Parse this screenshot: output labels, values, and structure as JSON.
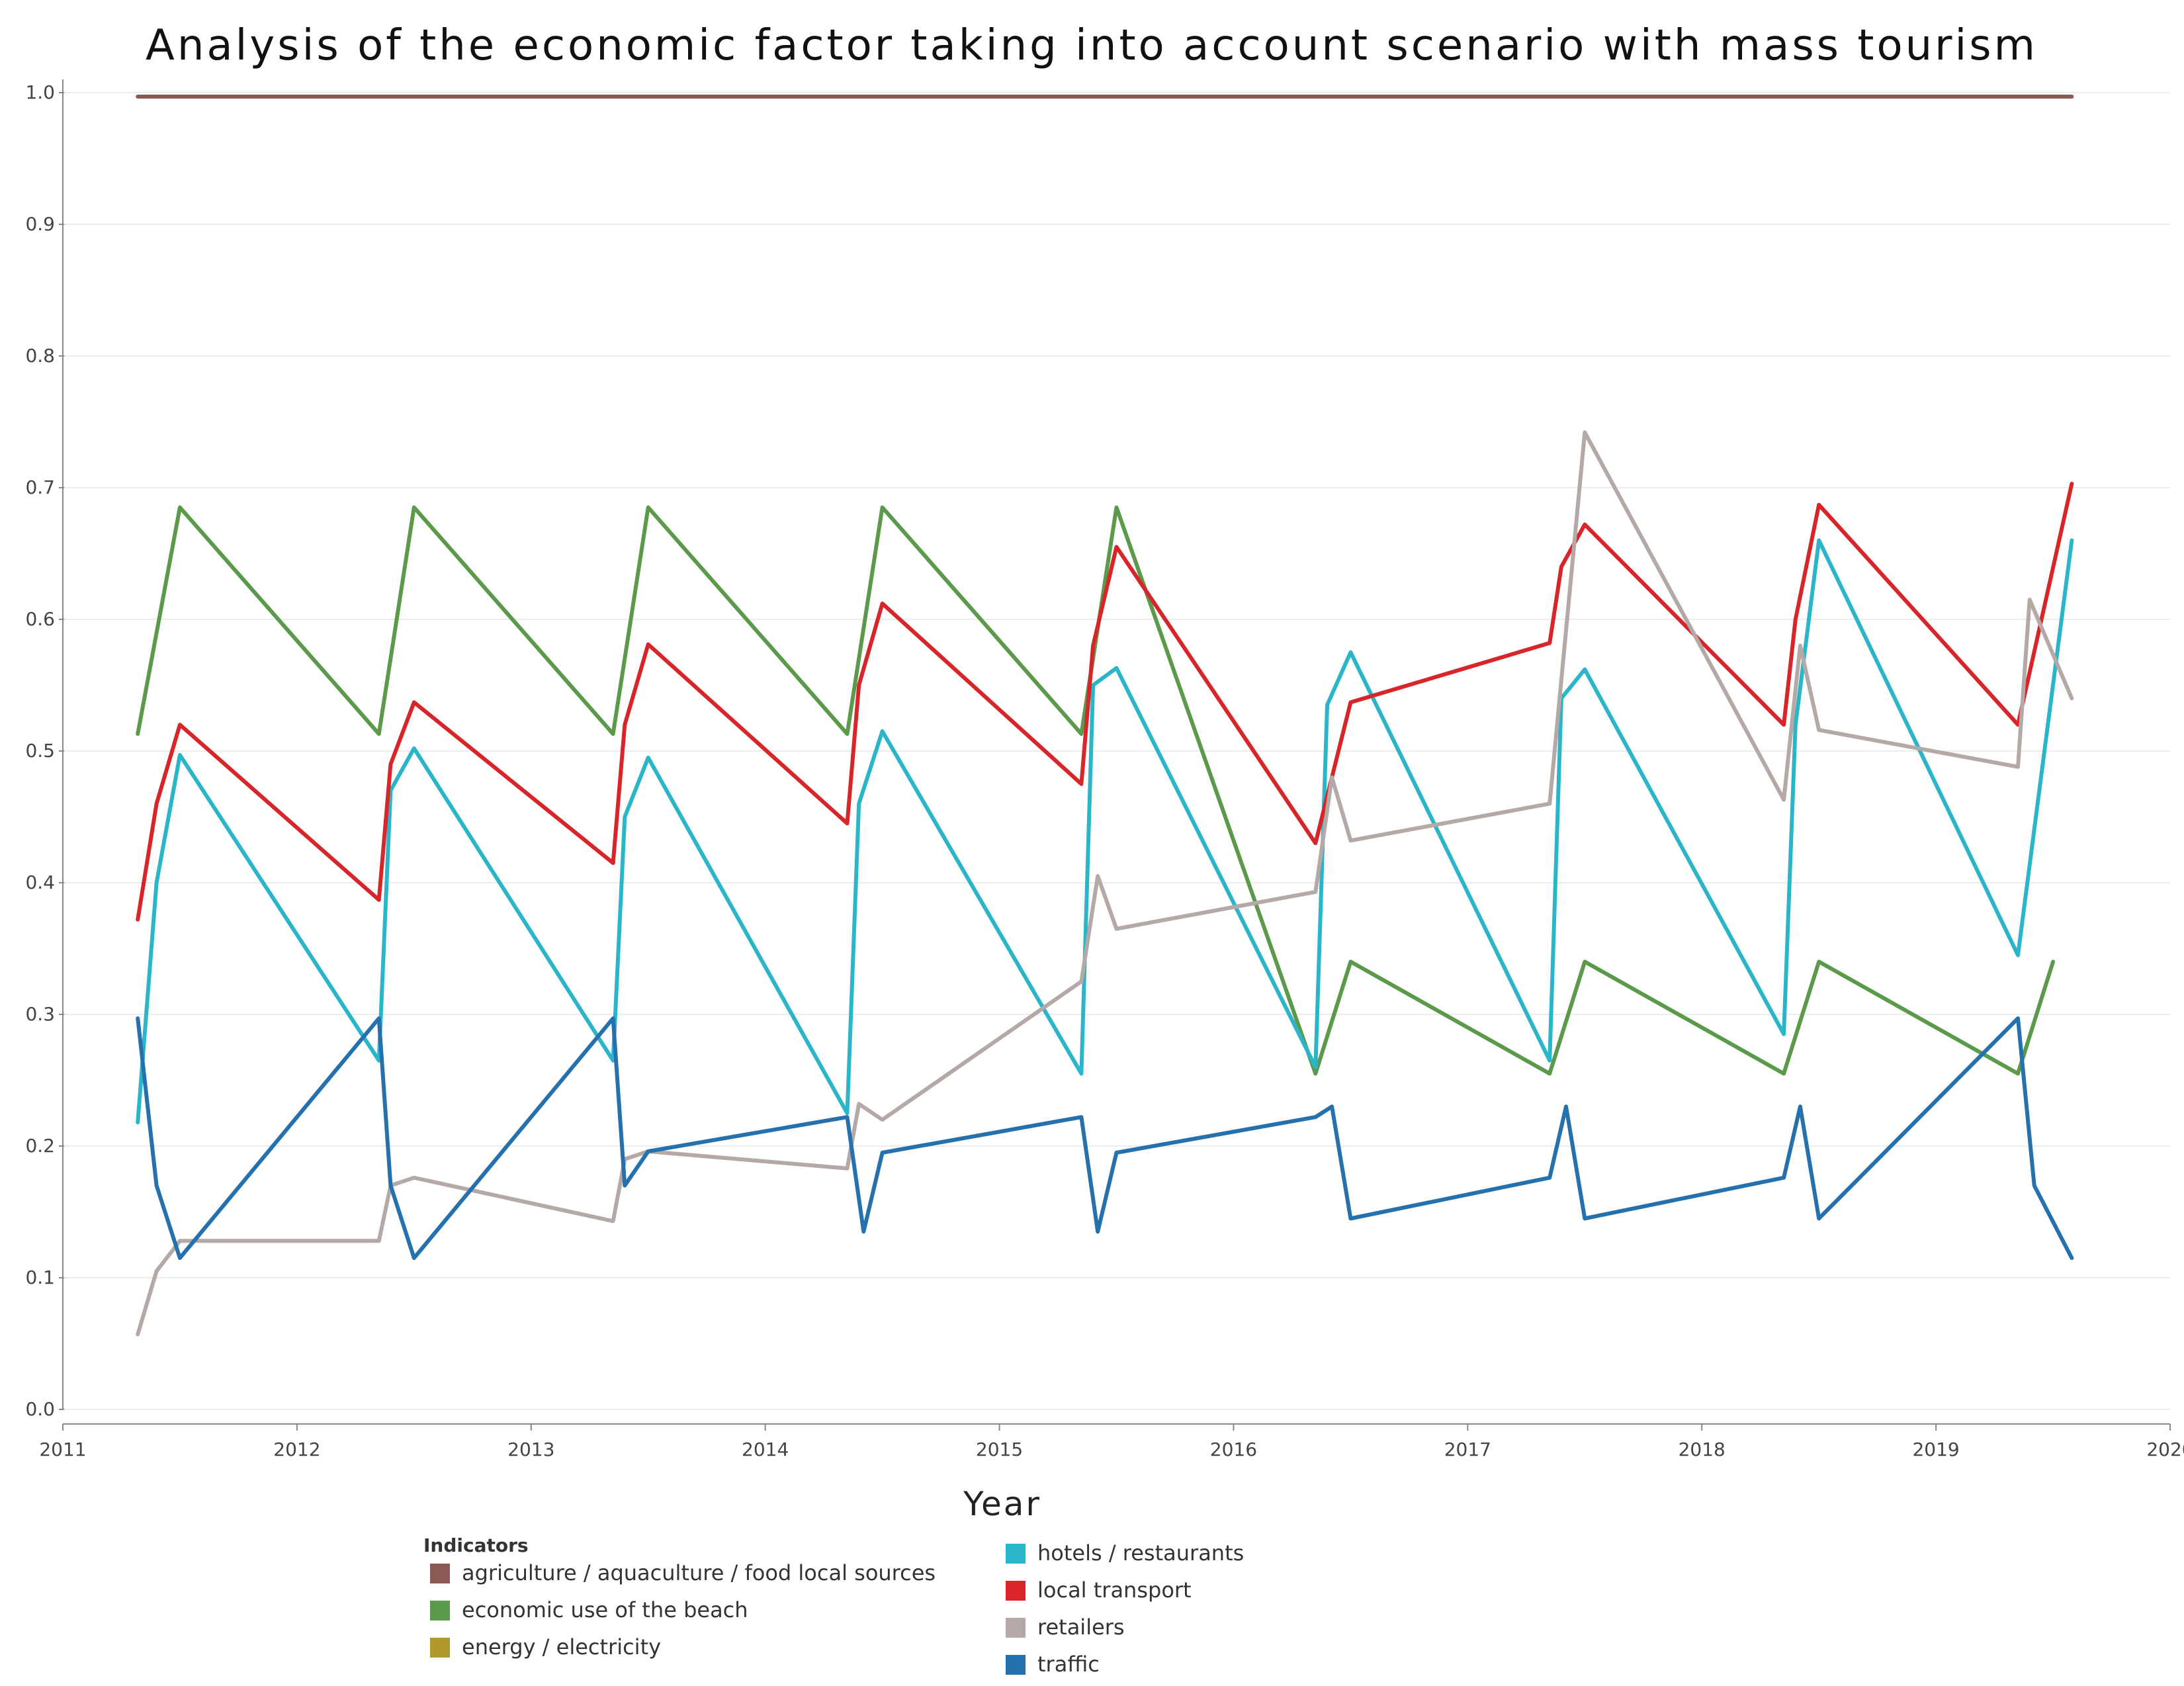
{
  "chart_data": {
    "type": "line",
    "title": "Analysis of the economic factor taking into account scenario with mass tourism",
    "xlabel": "Year",
    "ylabel": "",
    "xlim": [
      2011,
      2020
    ],
    "ylim": [
      0,
      1
    ],
    "x_ticks": [
      "2011",
      "2012",
      "2013",
      "2014",
      "2015",
      "2016",
      "2017",
      "2018",
      "2019",
      "2020"
    ],
    "y_ticks": [
      "0.0",
      "0.1",
      "0.2",
      "0.3",
      "0.4",
      "0.5",
      "0.6",
      "0.7",
      "0.8",
      "0.9",
      "1.0"
    ],
    "grid": true,
    "legend_title": "Indicators",
    "legend_position": "bottom",
    "series": [
      {
        "name": "agriculture / aquaculture / food local sources",
        "color": "#8c5a54",
        "points": [
          [
            2011.32,
            0.997
          ],
          [
            2019.58,
            0.997
          ]
        ]
      },
      {
        "name": "economic use of the beach",
        "color": "#5b9a4a",
        "points": [
          [
            2011.32,
            0.513
          ],
          [
            2011.5,
            0.685
          ],
          [
            2012.35,
            0.513
          ],
          [
            2012.5,
            0.685
          ],
          [
            2013.35,
            0.513
          ],
          [
            2013.5,
            0.685
          ],
          [
            2014.35,
            0.513
          ],
          [
            2014.5,
            0.685
          ],
          [
            2015.35,
            0.513
          ],
          [
            2015.5,
            0.685
          ],
          [
            2016.35,
            0.255
          ],
          [
            2016.5,
            0.34
          ],
          [
            2017.35,
            0.255
          ],
          [
            2017.5,
            0.34
          ],
          [
            2018.35,
            0.255
          ],
          [
            2018.5,
            0.34
          ],
          [
            2019.35,
            0.255
          ],
          [
            2019.5,
            0.34
          ]
        ]
      },
      {
        "name": "energy / electricity",
        "color": "#b09a2e",
        "points": []
      },
      {
        "name": "hotels / restaurants",
        "color": "#2bb5c8",
        "points": [
          [
            2011.32,
            0.218
          ],
          [
            2011.4,
            0.4
          ],
          [
            2011.5,
            0.497
          ],
          [
            2012.35,
            0.265
          ],
          [
            2012.4,
            0.47
          ],
          [
            2012.5,
            0.502
          ],
          [
            2013.35,
            0.265
          ],
          [
            2013.4,
            0.45
          ],
          [
            2013.5,
            0.495
          ],
          [
            2014.35,
            0.225
          ],
          [
            2014.4,
            0.46
          ],
          [
            2014.5,
            0.515
          ],
          [
            2015.35,
            0.255
          ],
          [
            2015.4,
            0.55
          ],
          [
            2015.5,
            0.563
          ],
          [
            2016.35,
            0.26
          ],
          [
            2016.4,
            0.535
          ],
          [
            2016.5,
            0.575
          ],
          [
            2017.35,
            0.265
          ],
          [
            2017.4,
            0.54
          ],
          [
            2017.5,
            0.562
          ],
          [
            2018.35,
            0.285
          ],
          [
            2018.4,
            0.52
          ],
          [
            2018.5,
            0.66
          ],
          [
            2019.35,
            0.345
          ],
          [
            2019.58,
            0.66
          ]
        ]
      },
      {
        "name": "local transport",
        "color": "#d7252a",
        "points": [
          [
            2011.32,
            0.372
          ],
          [
            2011.4,
            0.46
          ],
          [
            2011.5,
            0.52
          ],
          [
            2012.35,
            0.387
          ],
          [
            2012.4,
            0.49
          ],
          [
            2012.5,
            0.537
          ],
          [
            2013.35,
            0.415
          ],
          [
            2013.4,
            0.52
          ],
          [
            2013.5,
            0.581
          ],
          [
            2014.35,
            0.445
          ],
          [
            2014.4,
            0.55
          ],
          [
            2014.5,
            0.612
          ],
          [
            2015.35,
            0.475
          ],
          [
            2015.4,
            0.58
          ],
          [
            2015.5,
            0.655
          ],
          [
            2016.35,
            0.43
          ],
          [
            2016.5,
            0.537
          ],
          [
            2017.35,
            0.582
          ],
          [
            2017.4,
            0.64
          ],
          [
            2017.5,
            0.672
          ],
          [
            2018.35,
            0.52
          ],
          [
            2018.4,
            0.6
          ],
          [
            2018.5,
            0.687
          ],
          [
            2019.35,
            0.52
          ],
          [
            2019.58,
            0.703
          ]
        ]
      },
      {
        "name": "retailers",
        "color": "#b4a9a6",
        "points": [
          [
            2011.32,
            0.057
          ],
          [
            2011.4,
            0.105
          ],
          [
            2011.5,
            0.128
          ],
          [
            2012.35,
            0.128
          ],
          [
            2012.4,
            0.17
          ],
          [
            2012.5,
            0.176
          ],
          [
            2013.35,
            0.143
          ],
          [
            2013.4,
            0.19
          ],
          [
            2013.5,
            0.196
          ],
          [
            2014.35,
            0.183
          ],
          [
            2014.4,
            0.232
          ],
          [
            2014.5,
            0.22
          ],
          [
            2015.35,
            0.325
          ],
          [
            2015.42,
            0.405
          ],
          [
            2015.5,
            0.365
          ],
          [
            2016.35,
            0.393
          ],
          [
            2016.42,
            0.48
          ],
          [
            2016.5,
            0.432
          ],
          [
            2017.35,
            0.46
          ],
          [
            2017.5,
            0.742
          ],
          [
            2018.35,
            0.463
          ],
          [
            2018.42,
            0.58
          ],
          [
            2018.5,
            0.516
          ],
          [
            2019.35,
            0.488
          ],
          [
            2019.4,
            0.615
          ],
          [
            2019.58,
            0.54
          ]
        ]
      },
      {
        "name": "traffic",
        "color": "#2471ae",
        "points": [
          [
            2011.32,
            0.297
          ],
          [
            2011.4,
            0.17
          ],
          [
            2011.5,
            0.115
          ],
          [
            2012.35,
            0.297
          ],
          [
            2012.4,
            0.17
          ],
          [
            2012.5,
            0.115
          ],
          [
            2013.35,
            0.297
          ],
          [
            2013.4,
            0.17
          ],
          [
            2013.5,
            0.196
          ],
          [
            2014.35,
            0.222
          ],
          [
            2014.42,
            0.135
          ],
          [
            2014.5,
            0.195
          ],
          [
            2015.35,
            0.222
          ],
          [
            2015.42,
            0.135
          ],
          [
            2015.5,
            0.195
          ],
          [
            2016.35,
            0.222
          ],
          [
            2016.42,
            0.23
          ],
          [
            2016.5,
            0.145
          ],
          [
            2017.35,
            0.176
          ],
          [
            2017.42,
            0.23
          ],
          [
            2017.5,
            0.145
          ],
          [
            2018.35,
            0.176
          ],
          [
            2018.42,
            0.23
          ],
          [
            2018.5,
            0.145
          ],
          [
            2019.35,
            0.297
          ],
          [
            2019.42,
            0.17
          ],
          [
            2019.58,
            0.115
          ]
        ]
      }
    ]
  }
}
